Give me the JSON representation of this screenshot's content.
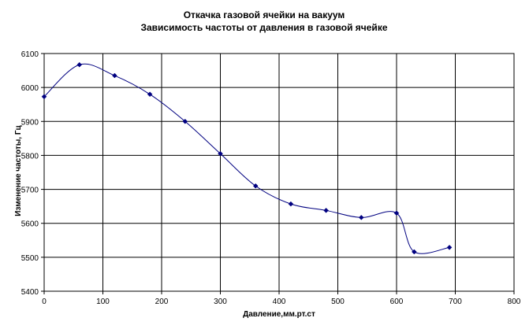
{
  "chart_data": {
    "type": "line",
    "title": "Откачка газовой ячейки на вакуум",
    "subtitle": "Зависимость частоты от давления в газовой ячейке",
    "xlabel": "Давление,мм.рт.ст",
    "ylabel": "Изменение частоты, Гц",
    "xlim": [
      0,
      800
    ],
    "ylim": [
      5400,
      6100
    ],
    "x_ticks": [
      0,
      100,
      200,
      300,
      400,
      500,
      600,
      700,
      800
    ],
    "y_ticks": [
      5400,
      5500,
      5600,
      5700,
      5800,
      5900,
      6000,
      6100
    ],
    "grid": true,
    "legend": "none",
    "colors": {
      "line": "#000080",
      "marker": "#000080",
      "grid": "#000000",
      "background": "#ffffff"
    },
    "series": [
      {
        "x": [
          0,
          60,
          120,
          180,
          240,
          300,
          360,
          420,
          480,
          540,
          600,
          630,
          690
        ],
        "y": [
          5973,
          6067,
          6035,
          5980,
          5900,
          5805,
          5710,
          5657,
          5638,
          5617,
          5630,
          5516,
          5529
        ]
      }
    ]
  }
}
